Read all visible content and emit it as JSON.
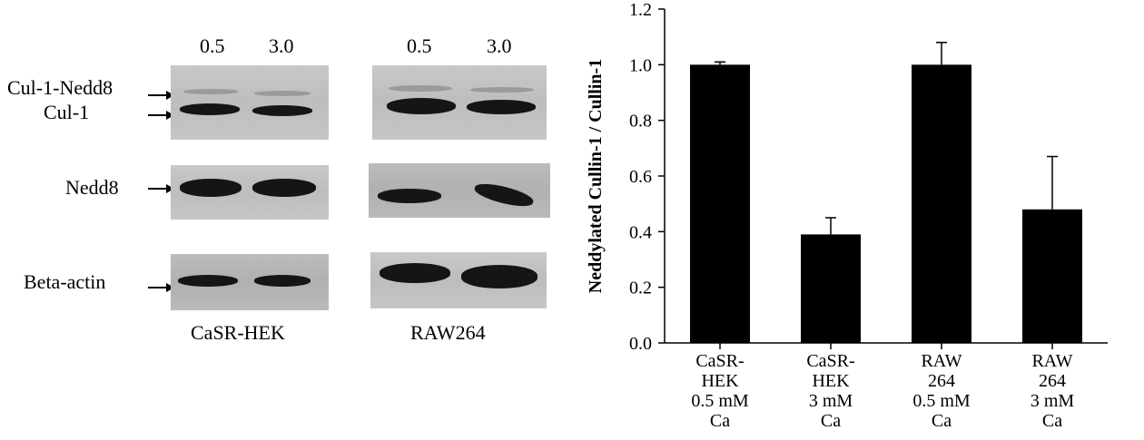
{
  "blots": {
    "concentrations_left": [
      "0.5",
      "3.0"
    ],
    "concentrations_right": [
      "0.5",
      "3.0"
    ],
    "row_labels": [
      "Cul-1-Nedd8",
      "Cul-1",
      "Nedd8",
      "Beta-actin"
    ],
    "cell_line_left": "CaSR-HEK",
    "cell_line_right": "RAW264"
  },
  "chart_data": {
    "type": "bar",
    "categories": [
      [
        "CaSR-",
        "HEK",
        "0.5 mM",
        "Ca"
      ],
      [
        "CaSR-",
        "HEK",
        "3 mM",
        "Ca"
      ],
      [
        "RAW",
        "264",
        "0.5 mM",
        "Ca"
      ],
      [
        "RAW",
        "264",
        "3 mM",
        "Ca"
      ]
    ],
    "values": [
      1.0,
      0.39,
      1.0,
      0.48
    ],
    "error_bars": [
      0.01,
      0.06,
      0.08,
      0.19
    ],
    "ylabel": "Neddylated Cullin-1 / Cullin-1",
    "xlabel": "",
    "ylim": [
      0.0,
      1.2
    ],
    "yticks": [
      "0.0",
      "0.2",
      "0.4",
      "0.6",
      "0.8",
      "1.0",
      "1.2"
    ],
    "bar_color": "#000000"
  }
}
